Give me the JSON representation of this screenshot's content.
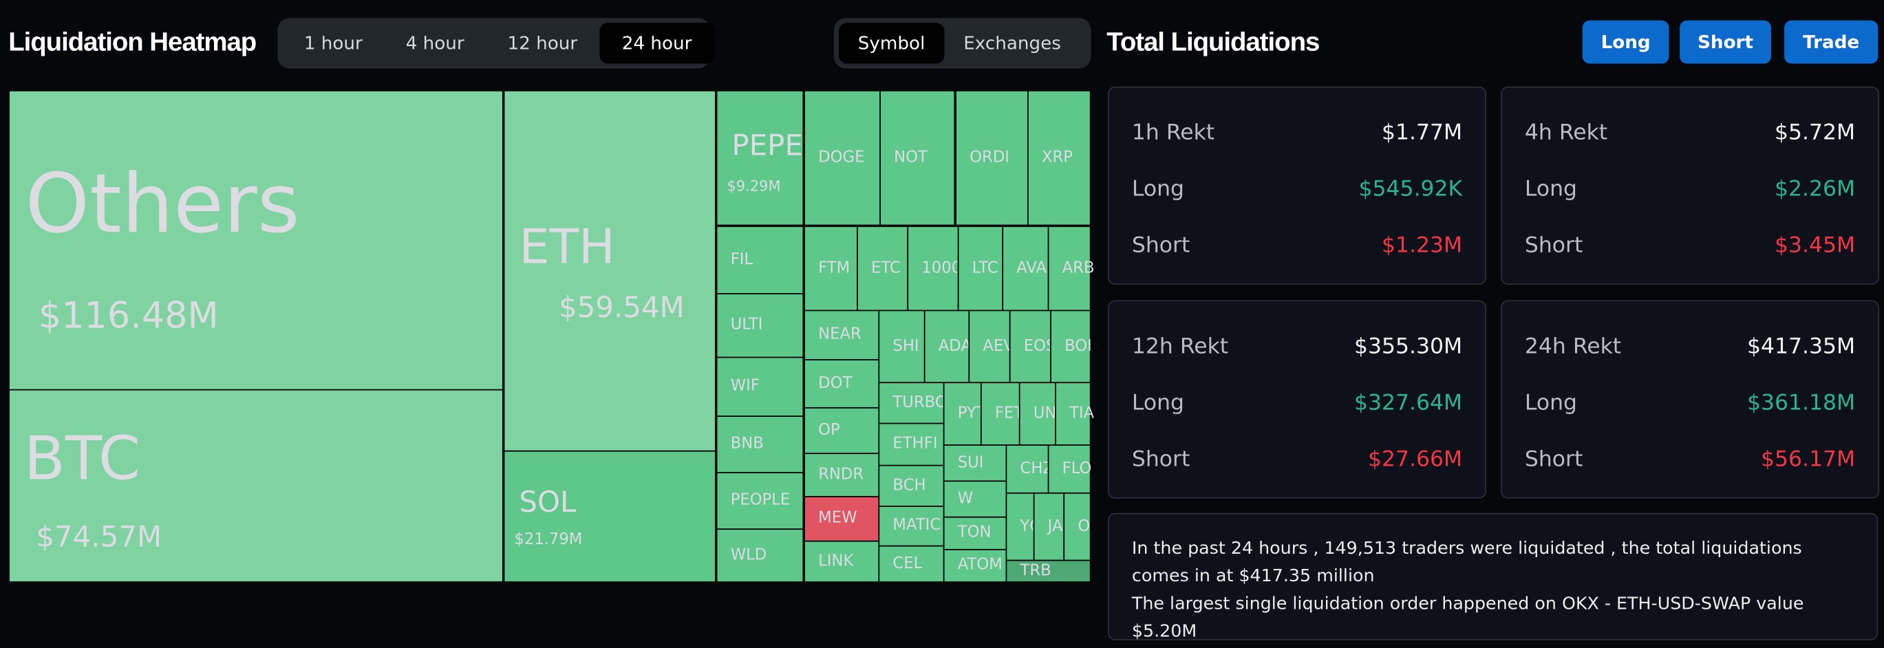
{
  "heatmap": {
    "title": "Liquidation Heatmap",
    "timeframes": [
      "1 hour",
      "4 hour",
      "12 hour",
      "24 hour"
    ],
    "active_timeframe": "24 hour",
    "groupings": [
      "Symbol",
      "Exchanges"
    ],
    "active_grouping": "Symbol",
    "colors": {
      "large": "#7fd3a0",
      "long": "#5ec88a",
      "short": "#e05561",
      "muted": "#4ea873"
    },
    "cells": [
      {
        "name": "Others",
        "value": "$116.48M",
        "color": "large"
      },
      {
        "name": "BTC",
        "value": "$74.57M",
        "color": "large"
      },
      {
        "name": "ETH",
        "value": "$59.54M",
        "color": "large"
      },
      {
        "name": "SOL",
        "value": "$21.79M",
        "color": "long"
      },
      {
        "name": "PEPE",
        "value": "$9.29M",
        "color": "long"
      },
      {
        "name": "DOGE",
        "color": "long"
      },
      {
        "name": "NOT",
        "color": "long"
      },
      {
        "name": "ORDI",
        "color": "long"
      },
      {
        "name": "XRP",
        "color": "long"
      },
      {
        "name": "FIL",
        "color": "long"
      },
      {
        "name": "ULTI",
        "color": "long"
      },
      {
        "name": "WIF",
        "color": "long"
      },
      {
        "name": "BNB",
        "color": "long"
      },
      {
        "name": "PEOPLE",
        "color": "long"
      },
      {
        "name": "WLD",
        "color": "long"
      },
      {
        "name": "FTM",
        "color": "long"
      },
      {
        "name": "ETC",
        "color": "long"
      },
      {
        "name": "1000",
        "color": "long"
      },
      {
        "name": "LTC",
        "color": "long"
      },
      {
        "name": "AVA",
        "color": "long"
      },
      {
        "name": "ARB",
        "color": "long"
      },
      {
        "name": "NEAR",
        "color": "long"
      },
      {
        "name": "DOT",
        "color": "long"
      },
      {
        "name": "OP",
        "color": "long"
      },
      {
        "name": "RNDR",
        "color": "long"
      },
      {
        "name": "MEW",
        "color": "short"
      },
      {
        "name": "LINK",
        "color": "long"
      },
      {
        "name": "SHI",
        "color": "long"
      },
      {
        "name": "ADA",
        "color": "long"
      },
      {
        "name": "AEV",
        "color": "long"
      },
      {
        "name": "EOS",
        "color": "long"
      },
      {
        "name": "BOI",
        "color": "long"
      },
      {
        "name": "TURBO",
        "color": "long"
      },
      {
        "name": "ETHFI",
        "color": "long"
      },
      {
        "name": "BCH",
        "color": "long"
      },
      {
        "name": "MATIC",
        "color": "long"
      },
      {
        "name": "CEL",
        "color": "long"
      },
      {
        "name": "PYT",
        "color": "long"
      },
      {
        "name": "FET",
        "color": "long"
      },
      {
        "name": "UN",
        "color": "long"
      },
      {
        "name": "TIA",
        "color": "long"
      },
      {
        "name": "SUI",
        "color": "long"
      },
      {
        "name": "W",
        "color": "long"
      },
      {
        "name": "TON",
        "color": "long"
      },
      {
        "name": "ATOM",
        "color": "long"
      },
      {
        "name": "CHZ",
        "color": "long"
      },
      {
        "name": "FLO",
        "color": "long"
      },
      {
        "name": "YG",
        "color": "long"
      },
      {
        "name": "JA",
        "color": "long"
      },
      {
        "name": "O",
        "color": "long"
      },
      {
        "name": "TRB",
        "color": "muted"
      }
    ]
  },
  "totals": {
    "title": "Total Liquidations",
    "buttons": {
      "long": "Long",
      "short": "Short",
      "trade": "Trade"
    },
    "cards": [
      {
        "label": "1h Rekt",
        "total": "$1.77M",
        "long_label": "Long",
        "long": "$545.92K",
        "short_label": "Short",
        "short": "$1.23M"
      },
      {
        "label": "4h Rekt",
        "total": "$5.72M",
        "long_label": "Long",
        "long": "$2.26M",
        "short_label": "Short",
        "short": "$3.45M"
      },
      {
        "label": "12h Rekt",
        "total": "$355.30M",
        "long_label": "Long",
        "long": "$327.64M",
        "short_label": "Short",
        "short": "$27.66M"
      },
      {
        "label": "24h Rekt",
        "total": "$417.35M",
        "long_label": "Long",
        "long": "$361.18M",
        "short_label": "Short",
        "short": "$56.17M"
      }
    ],
    "summary_line1": "In the past 24 hours , 149,513 traders were liquidated , the total liquidations comes in at $417.35 million",
    "summary_line2": "The largest single liquidation order happened on OKX - ETH-USD-SWAP value $5.20M",
    "colors": {
      "accent": "#0b6acb",
      "long": "#2bb38d",
      "short": "#f23645"
    }
  }
}
